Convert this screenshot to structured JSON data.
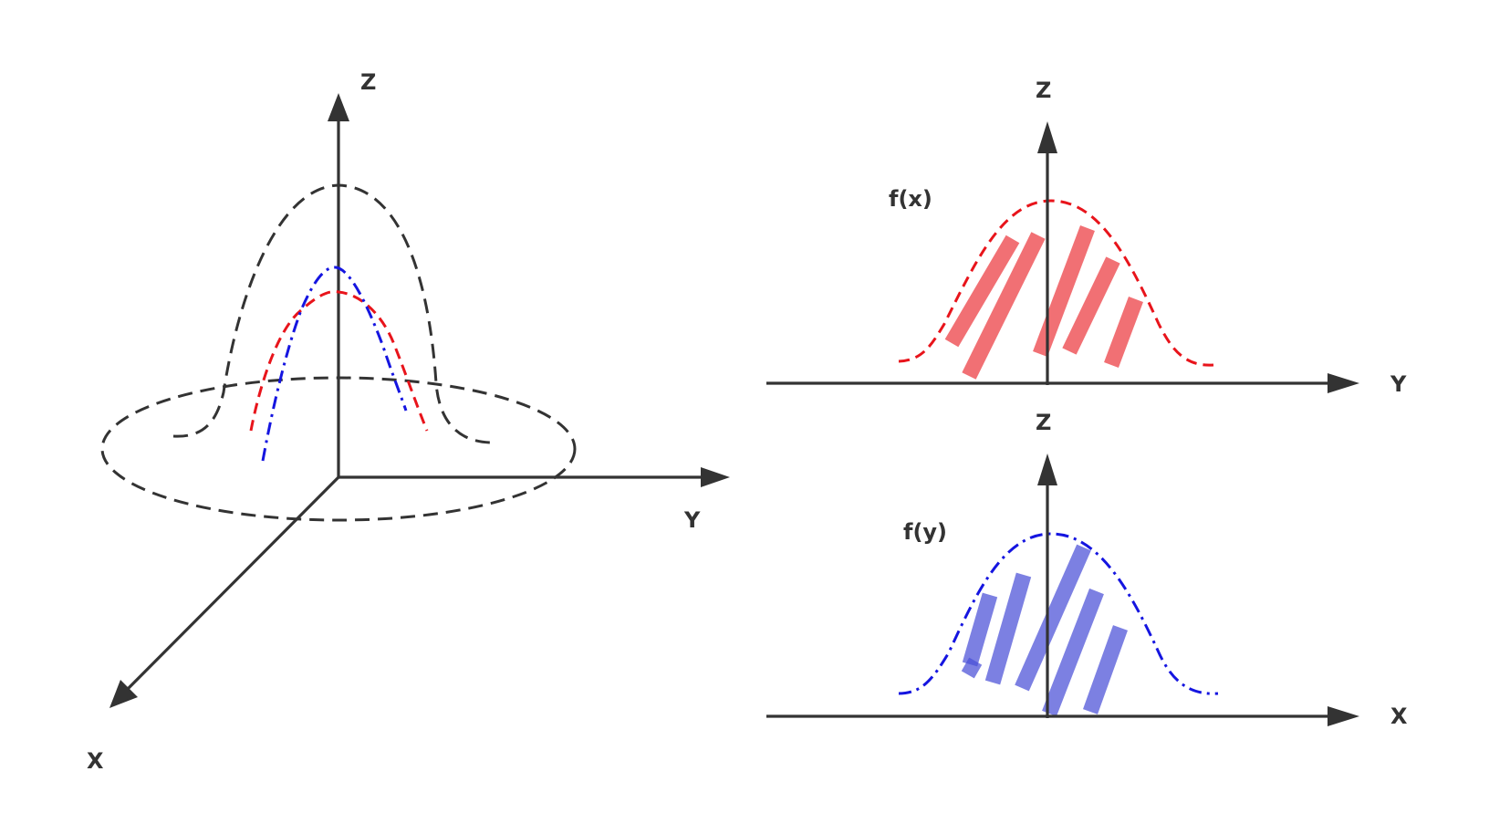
{
  "colors": {
    "axis": "#333333",
    "red_curve": "#e8141b",
    "blue_curve": "#1515e0",
    "red_hatch": "#ec3a3f",
    "blue_hatch": "#4a50d8"
  },
  "left_3d": {
    "labels": {
      "z": "Z",
      "y": "Y",
      "x": "X"
    }
  },
  "top_right": {
    "labels": {
      "z": "Z",
      "y": "Y",
      "curve": "f(x)"
    }
  },
  "bottom_right": {
    "labels": {
      "z": "Z",
      "x": "X",
      "curve": "f(y)"
    }
  }
}
